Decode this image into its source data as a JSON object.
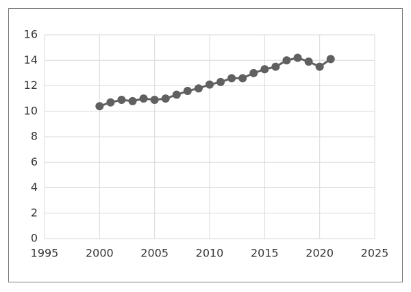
{
  "chart_data": {
    "type": "line",
    "x": [
      2000,
      2001,
      2002,
      2003,
      2004,
      2005,
      2006,
      2007,
      2008,
      2009,
      2010,
      2011,
      2012,
      2013,
      2014,
      2015,
      2016,
      2017,
      2018,
      2019,
      2020,
      2021
    ],
    "values": [
      10.4,
      10.7,
      10.9,
      10.8,
      11.0,
      10.9,
      11.0,
      11.3,
      11.6,
      11.8,
      12.1,
      12.3,
      12.6,
      12.6,
      13.0,
      13.3,
      13.5,
      14.0,
      14.2,
      13.9,
      13.5,
      14.1
    ],
    "color": "#606060",
    "xlim": [
      1995,
      2025
    ],
    "xticks": [
      1995,
      2000,
      2005,
      2010,
      2015,
      2020,
      2025
    ],
    "ylim": [
      0,
      16
    ],
    "yticks": [
      0,
      2,
      4,
      6,
      8,
      10,
      12,
      14,
      16
    ],
    "grid": true
  }
}
